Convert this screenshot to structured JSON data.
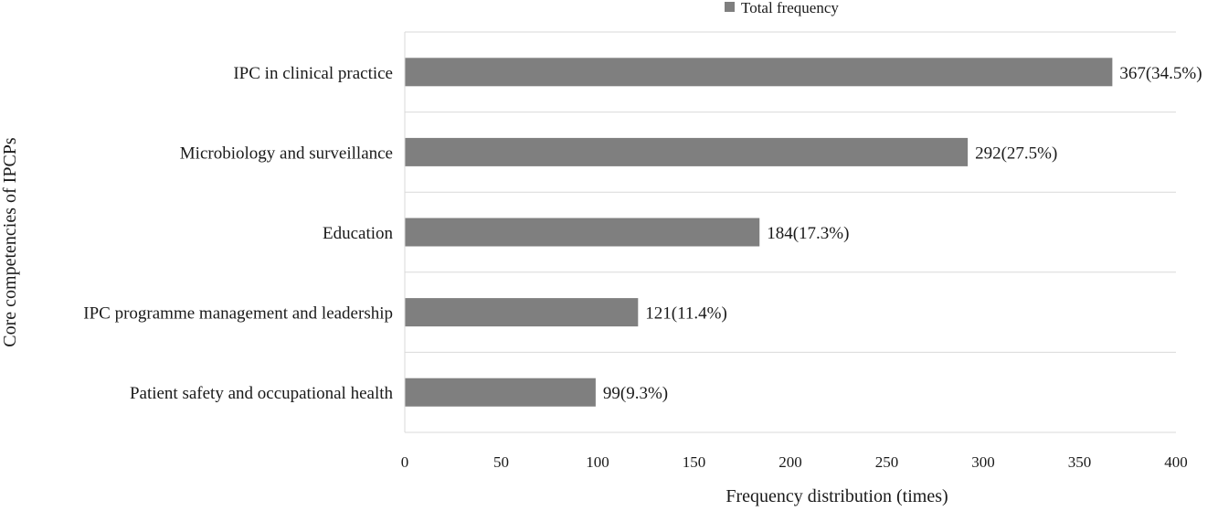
{
  "chart_data": {
    "type": "bar",
    "orientation": "horizontal",
    "categories": [
      "IPC in clinical practice",
      "Microbiology and surveillance",
      "Education",
      "IPC programme management and leadership",
      "Patient safety and occupational health"
    ],
    "series": [
      {
        "name": "Total frequency",
        "values": [
          367,
          292,
          184,
          121,
          99
        ],
        "labels": [
          "367(34.5%)",
          "292(27.5%)",
          "184(17.3%)",
          "121(11.4%)",
          "99(9.3%)"
        ]
      }
    ],
    "xlabel": "Frequency distribution (times)",
    "ylabel": "Core competencies of IPCPs",
    "xlim": [
      0,
      400
    ],
    "xticks": [
      0,
      50,
      100,
      150,
      200,
      250,
      300,
      350,
      400
    ],
    "grid": true,
    "legend_position": "top",
    "bar_color": "#7f7f7f",
    "grid_color": "#d9d9d9"
  }
}
